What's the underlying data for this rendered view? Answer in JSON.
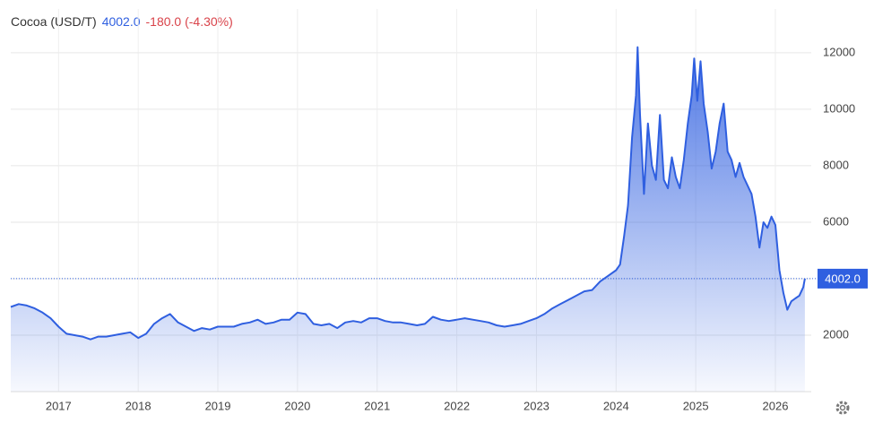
{
  "chart_data": {
    "type": "area",
    "title": "Cocoa (USD/T)",
    "last": {
      "value": 4002,
      "label": "4002.0"
    },
    "change": "-180.0 (-4.30%)",
    "color": "#2f5fe0",
    "grid": true,
    "xlim": [
      2016.4,
      2026.45
    ],
    "ylim": [
      0,
      12600
    ],
    "xticks": [
      2017,
      2018,
      2019,
      2020,
      2021,
      2022,
      2023,
      2024,
      2025,
      2026
    ],
    "yticks": [
      2000,
      4000,
      6000,
      8000,
      10000,
      12000
    ],
    "x": [
      2016.4,
      2016.5,
      2016.6,
      2016.7,
      2016.8,
      2016.9,
      2017.0,
      2017.1,
      2017.2,
      2017.3,
      2017.4,
      2017.5,
      2017.6,
      2017.7,
      2017.8,
      2017.9,
      2018.0,
      2018.1,
      2018.2,
      2018.3,
      2018.4,
      2018.5,
      2018.6,
      2018.7,
      2018.8,
      2018.9,
      2019.0,
      2019.1,
      2019.2,
      2019.3,
      2019.4,
      2019.5,
      2019.6,
      2019.7,
      2019.8,
      2019.9,
      2020.0,
      2020.1,
      2020.2,
      2020.3,
      2020.4,
      2020.5,
      2020.6,
      2020.7,
      2020.8,
      2020.9,
      2021.0,
      2021.1,
      2021.2,
      2021.3,
      2021.4,
      2021.5,
      2021.6,
      2021.7,
      2021.8,
      2021.9,
      2022.0,
      2022.1,
      2022.2,
      2022.3,
      2022.4,
      2022.5,
      2022.6,
      2022.7,
      2022.8,
      2022.9,
      2023.0,
      2023.1,
      2023.2,
      2023.3,
      2023.4,
      2023.5,
      2023.6,
      2023.7,
      2023.8,
      2023.9,
      2024.0,
      2024.05,
      2024.1,
      2024.15,
      2024.2,
      2024.25,
      2024.27,
      2024.3,
      2024.35,
      2024.4,
      2024.45,
      2024.5,
      2024.55,
      2024.6,
      2024.65,
      2024.7,
      2024.75,
      2024.8,
      2024.85,
      2024.9,
      2024.95,
      2024.98,
      2025.02,
      2025.06,
      2025.1,
      2025.15,
      2025.2,
      2025.25,
      2025.3,
      2025.35,
      2025.4,
      2025.45,
      2025.5,
      2025.55,
      2025.6,
      2025.7,
      2025.75,
      2025.8,
      2025.85,
      2025.9,
      2025.95,
      2026.0,
      2026.05,
      2026.1,
      2026.15,
      2026.2,
      2026.25,
      2026.3,
      2026.35,
      2026.37
    ],
    "values": [
      3000,
      3100,
      3050,
      2950,
      2800,
      2600,
      2300,
      2050,
      2000,
      1950,
      1850,
      1950,
      1950,
      2000,
      2050,
      2100,
      1900,
      2050,
      2400,
      2600,
      2750,
      2450,
      2300,
      2150,
      2250,
      2200,
      2300,
      2300,
      2300,
      2400,
      2450,
      2550,
      2400,
      2450,
      2550,
      2550,
      2800,
      2750,
      2400,
      2350,
      2400,
      2250,
      2450,
      2500,
      2450,
      2600,
      2600,
      2500,
      2450,
      2450,
      2400,
      2350,
      2400,
      2650,
      2550,
      2500,
      2550,
      2600,
      2550,
      2500,
      2450,
      2350,
      2300,
      2350,
      2400,
      2500,
      2600,
      2750,
      2950,
      3100,
      3250,
      3400,
      3550,
      3600,
      3900,
      4100,
      4300,
      4500,
      5500,
      6600,
      9000,
      10500,
      12200,
      9800,
      7000,
      9500,
      8000,
      7500,
      9800,
      7500,
      7200,
      8300,
      7600,
      7200,
      8200,
      9500,
      10500,
      11800,
      10300,
      11700,
      10200,
      9200,
      7900,
      8500,
      9500,
      10200,
      8500,
      8200,
      7600,
      8100,
      7600,
      7000,
      6200,
      5100,
      6000,
      5800,
      6200,
      5900,
      4300,
      3500,
      2900,
      3200,
      3300,
      3400,
      3700,
      4002
    ]
  }
}
